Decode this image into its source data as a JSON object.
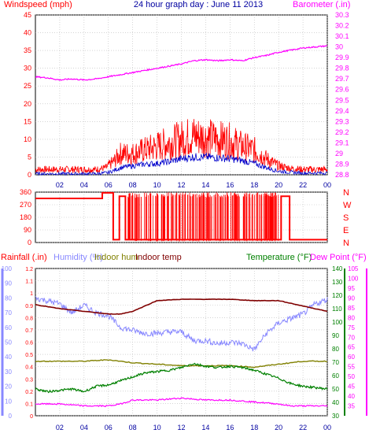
{
  "chart_data": {
    "title": "24 hour graph day : June 11 2013",
    "x_ticks": [
      "02",
      "04",
      "06",
      "08",
      "10",
      "12",
      "14",
      "16",
      "18",
      "20",
      "22",
      "00"
    ],
    "panels": [
      {
        "type": "line",
        "left_axis": {
          "label": "Windspeed (mph)",
          "range": [
            0,
            45
          ],
          "ticks": [
            "0",
            "5",
            "10",
            "15",
            "20",
            "25",
            "30",
            "35",
            "40",
            "45"
          ],
          "color": "#ff0000"
        },
        "right_axis": {
          "label": "Barometer (.in)",
          "range": [
            28.8,
            30.3
          ],
          "ticks": [
            "28.8",
            "28.9",
            "29",
            "29.1",
            "29.2",
            "29.3",
            "29.4",
            "29.5",
            "29.6",
            "29.7",
            "29.8",
            "29.9",
            "30",
            "30.1",
            "30.2",
            "30.3"
          ],
          "color": "#ff00ff"
        },
        "series": [
          {
            "color": "#ff0000",
            "x": [
              0,
              2,
              4,
              5,
              5.8,
              6.5,
              7,
              8,
              9,
              10,
              11,
              12,
              13,
              14,
              15,
              16,
              17,
              18,
              19,
              20,
              21,
              22,
              23,
              24
            ],
            "y": [
              1.5,
              1.5,
              1.5,
              1.5,
              2,
              4,
              6,
              6,
              7,
              8,
              9,
              10,
              11,
              10.5,
              10,
              9.5,
              8,
              7,
              4.5,
              2.5,
              1.8,
              1.5,
              1.5,
              1.5
            ]
          },
          {
            "color": "#0000cc",
            "x": [
              0,
              2,
              4,
              5,
              6,
              7,
              8,
              9,
              10,
              11,
              12,
              13,
              14,
              15,
              16,
              17,
              18,
              19,
              20,
              21,
              22,
              23,
              24
            ],
            "y": [
              0.3,
              0.3,
              0.3,
              0.3,
              0.6,
              2,
              2.5,
              3,
              3.2,
              3.7,
              4.5,
              5,
              5,
              4.8,
              4.5,
              4,
              3.2,
              2,
              1,
              0.7,
              0.5,
              0.5,
              0.5
            ]
          },
          {
            "color": "#ff00ff",
            "axis": "right",
            "x": [
              0,
              1,
              2,
              3,
              4,
              5,
              6,
              7,
              8,
              9,
              10,
              11,
              12,
              13,
              14,
              15,
              16,
              17,
              18,
              19,
              20,
              21,
              22,
              23,
              24
            ],
            "y": [
              29.72,
              29.71,
              29.69,
              29.7,
              29.69,
              29.7,
              29.72,
              29.74,
              29.76,
              29.78,
              29.8,
              29.82,
              29.84,
              29.87,
              29.88,
              29.87,
              29.88,
              29.87,
              29.9,
              29.92,
              29.95,
              29.97,
              29.99,
              30.0,
              30.01
            ]
          }
        ]
      },
      {
        "type": "line",
        "left_axis": {
          "range": [
            0,
            360
          ],
          "ticks": [
            "0",
            "90",
            "180",
            "270",
            "360"
          ],
          "color": "#ff0000"
        },
        "right_labels": [
          "N",
          "W",
          "S",
          "E",
          "N"
        ],
        "series": [
          {
            "color": "#ff0000",
            "x": [
              0,
              5.5,
              5.5,
              6.4,
              6.4,
              6.9,
              6.9,
              7.4,
              7.4,
              20.2,
              20.2,
              20.9,
              20.9,
              24
            ],
            "y": [
              315,
              315,
              355,
              355,
              20,
              20,
              330,
              330,
              20,
              20,
              330,
              330,
              20,
              20
            ]
          }
        ]
      },
      {
        "type": "line",
        "left_axes": [
          {
            "label": "Rainfall (.in)",
            "range": [
              0,
              1.2
            ],
            "ticks": [
              "0",
              "0.1",
              "0.2",
              "0.3",
              "0.4",
              "0.5",
              "0.6",
              "0.7",
              "0.8",
              "0.9",
              "1",
              "1.1",
              "1.2"
            ],
            "color": "#ff0000"
          },
          {
            "label": "Humidity (%)",
            "range": [
              0,
              100
            ],
            "ticks": [
              "0",
              "10",
              "20",
              "30",
              "40",
              "50",
              "60",
              "70",
              "80",
              "90",
              "100"
            ],
            "color": "#8888ff"
          }
        ],
        "legend_labels": [
          "Indoor hum",
          "Indoor temp"
        ],
        "right_axes": [
          {
            "label": "Temperature (°F)",
            "range": [
              30,
              140
            ],
            "ticks": [
              "30",
              "40",
              "50",
              "60",
              "70",
              "80",
              "90",
              "100",
              "110",
              "120",
              "130",
              "140"
            ],
            "color": "#008000"
          },
          {
            "label": "Dew Point (°F)",
            "range": [
              30,
              105
            ],
            "ticks": [
              "35",
              "40",
              "45",
              "50",
              "55",
              "60",
              "65",
              "70",
              "75",
              "80",
              "85",
              "90",
              "95",
              "100",
              "105"
            ],
            "color": "#ff00ff"
          }
        ],
        "series": [
          {
            "name": "Humidity",
            "color": "#8888ff",
            "x": [
              0,
              1,
              2,
              3,
              4,
              5,
              6,
              7,
              8,
              9,
              10,
              11,
              12,
              13,
              14,
              15,
              16,
              17,
              18,
              19,
              20,
              21,
              22,
              23,
              24
            ],
            "y": [
              80,
              78,
              76,
              70,
              75,
              70,
              68,
              60,
              58,
              56,
              56,
              57,
              57,
              51,
              51,
              49,
              50,
              49,
              45,
              56,
              63,
              66,
              69,
              76,
              79
            ]
          },
          {
            "name": "Indoor hum",
            "color": "#808000",
            "x": [
              0,
              2,
              4,
              6,
              7,
              8,
              10,
              12,
              14,
              16,
              18,
              20,
              21,
              22,
              24
            ],
            "y": [
              37,
              37,
              37,
              38,
              37,
              36,
              35,
              34,
              34,
              34,
              33,
              35,
              36,
              37,
              37
            ]
          },
          {
            "name": "Indoor temp",
            "color": "#800000",
            "x": [
              0,
              2,
              4,
              6,
              7,
              8,
              9,
              10,
              12,
              14,
              16,
              18,
              20,
              22,
              23,
              24
            ],
            "y": [
              113,
              110,
              108,
              106,
              106,
              108,
              112,
              116,
              117,
              117,
              117,
              116,
              116,
              112,
              110,
              108
            ]
          },
          {
            "name": "Temperature",
            "color": "#008000",
            "x": [
              0,
              1,
              2,
              3,
              4,
              5,
              6,
              7,
              8,
              9,
              10,
              11,
              12,
              13,
              14,
              15,
              16,
              17,
              18,
              19,
              20,
              21,
              22,
              23,
              24
            ],
            "y": [
              50,
              48,
              49,
              50,
              48,
              52,
              53,
              56,
              59,
              62,
              63,
              64,
              66,
              69,
              67,
              66,
              67,
              66,
              64,
              61,
              58,
              54,
              52,
              51,
              50
            ]
          },
          {
            "name": "Dew Point",
            "color": "#ff00ff",
            "x": [
              0,
              2,
              4,
              6,
              7,
              8,
              10,
              12,
              14,
              16,
              18,
              20,
              21,
              22,
              24
            ],
            "y": [
              36,
              36,
              35,
              35,
              36,
              38,
              38,
              39,
              38,
              38,
              37,
              36,
              35,
              35,
              35
            ]
          }
        ]
      }
    ]
  }
}
